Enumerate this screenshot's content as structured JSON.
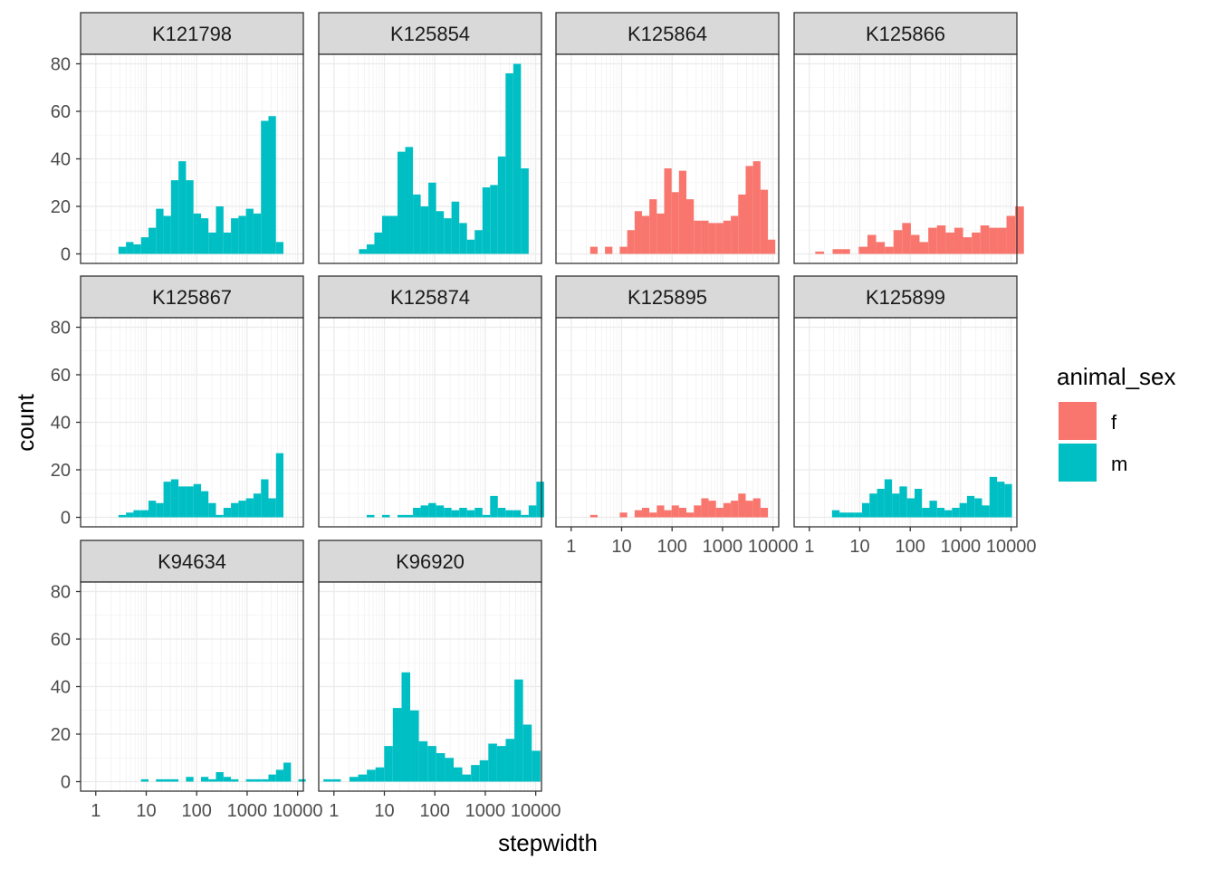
{
  "chart_data": {
    "type": "bar",
    "subtype": "faceted-histogram",
    "x_scale": "log10",
    "xlabel": "stepwidth",
    "ylabel": "count",
    "xlim": [
      0.5,
      13000
    ],
    "ylim": [
      -4,
      84
    ],
    "x_ticks": [
      1,
      10,
      100,
      1000,
      10000
    ],
    "x_tick_labels": [
      "1",
      "10",
      "100",
      "1000",
      "10000"
    ],
    "y_ticks": [
      0,
      20,
      40,
      60,
      80
    ],
    "y_tick_labels": [
      "0",
      "20",
      "40",
      "60",
      "80"
    ],
    "grid": true,
    "legend": {
      "title": "animal_sex",
      "position": "right",
      "items": [
        {
          "label": "f",
          "color": "#F8766D"
        },
        {
          "label": "m",
          "color": "#00BFC4"
        }
      ]
    },
    "facets": [
      {
        "name": "K121798",
        "sex": "m",
        "bars": [
          [
            2.82,
            3.97,
            3
          ],
          [
            3.97,
            5.59,
            5
          ],
          [
            5.59,
            7.87,
            4
          ],
          [
            7.87,
            11.1,
            7
          ],
          [
            11.1,
            15.6,
            11
          ],
          [
            15.6,
            22,
            19
          ],
          [
            22,
            31,
            16
          ],
          [
            31,
            43.6,
            31
          ],
          [
            43.6,
            61.4,
            39
          ],
          [
            61.4,
            86.4,
            31
          ],
          [
            86.4,
            122,
            17
          ],
          [
            122,
            171,
            15
          ],
          [
            171,
            241,
            9
          ],
          [
            241,
            340,
            20
          ],
          [
            340,
            478,
            9
          ],
          [
            478,
            673,
            15
          ],
          [
            673,
            948,
            16
          ],
          [
            948,
            1335,
            19
          ],
          [
            1335,
            1880,
            17
          ],
          [
            1880,
            2647,
            56
          ],
          [
            2647,
            3728,
            58
          ],
          [
            3728,
            5250,
            5
          ]
        ]
      },
      {
        "name": "K125854",
        "sex": "m",
        "bars": [
          [
            3.14,
            4.46,
            2
          ],
          [
            4.46,
            6.34,
            4
          ],
          [
            6.34,
            9.02,
            9
          ],
          [
            9.02,
            12.8,
            16
          ],
          [
            12.8,
            18.2,
            16
          ],
          [
            18.2,
            25.9,
            43
          ],
          [
            25.9,
            36.9,
            45
          ],
          [
            36.9,
            52.4,
            25
          ],
          [
            52.4,
            74.5,
            20
          ],
          [
            74.5,
            106,
            30
          ],
          [
            106,
            151,
            18
          ],
          [
            151,
            214,
            15
          ],
          [
            214,
            305,
            22
          ],
          [
            305,
            434,
            13
          ],
          [
            434,
            617,
            6
          ],
          [
            617,
            877,
            10
          ],
          [
            877,
            1247,
            28
          ],
          [
            1247,
            1773,
            29
          ],
          [
            1773,
            2521,
            41
          ],
          [
            2521,
            3585,
            76
          ],
          [
            3585,
            5098,
            80
          ],
          [
            5098,
            7250,
            36
          ]
        ]
      },
      {
        "name": "K125864",
        "sex": "f",
        "bars": [
          [
            1.7,
            2.38,
            0
          ],
          [
            2.38,
            3.34,
            3
          ],
          [
            3.34,
            4.68,
            0
          ],
          [
            4.68,
            6.56,
            3
          ],
          [
            6.56,
            9.2,
            0
          ],
          [
            9.2,
            12.9,
            3
          ],
          [
            12.9,
            18.1,
            10
          ],
          [
            18.1,
            25.3,
            18
          ],
          [
            25.3,
            35.5,
            16
          ],
          [
            35.5,
            49.8,
            23
          ],
          [
            49.8,
            69.8,
            17
          ],
          [
            69.8,
            97.9,
            36
          ],
          [
            97.9,
            137,
            26
          ],
          [
            137,
            192,
            35
          ],
          [
            192,
            270,
            23
          ],
          [
            270,
            378,
            14
          ],
          [
            378,
            530,
            14
          ],
          [
            530,
            743,
            13
          ],
          [
            743,
            1042,
            13
          ],
          [
            1042,
            1461,
            14
          ],
          [
            1461,
            2049,
            16
          ],
          [
            2049,
            2874,
            25
          ],
          [
            2874,
            4030,
            37
          ],
          [
            4030,
            5650,
            39
          ],
          [
            5650,
            7923,
            27
          ],
          [
            7923,
            11110,
            6
          ]
        ]
      },
      {
        "name": "K125866",
        "sex": "f",
        "bars": [
          [
            0.88,
            1.31,
            0
          ],
          [
            1.31,
            1.95,
            1
          ],
          [
            1.95,
            2.9,
            0
          ],
          [
            2.9,
            4.31,
            2
          ],
          [
            4.31,
            6.41,
            2
          ],
          [
            6.41,
            9.53,
            0
          ],
          [
            9.53,
            14.2,
            3
          ],
          [
            14.2,
            21.1,
            8
          ],
          [
            21.1,
            31.4,
            5
          ],
          [
            31.4,
            46.6,
            3
          ],
          [
            46.6,
            69.3,
            10
          ],
          [
            69.3,
            103,
            13
          ],
          [
            103,
            153,
            8
          ],
          [
            153,
            228,
            5
          ],
          [
            228,
            339,
            11
          ],
          [
            339,
            504,
            12
          ],
          [
            504,
            750,
            9
          ],
          [
            750,
            1115,
            11
          ],
          [
            1115,
            1658,
            7
          ],
          [
            1658,
            2465,
            9
          ],
          [
            2465,
            3665,
            12
          ],
          [
            3665,
            5450,
            11
          ],
          [
            5450,
            8104,
            11
          ],
          [
            8104,
            12050,
            16
          ],
          [
            12050,
            17920,
            20
          ]
        ]
      },
      {
        "name": "K125867",
        "sex": "m",
        "bars": [
          [
            2.82,
            3.97,
            1
          ],
          [
            3.97,
            5.59,
            2
          ],
          [
            5.59,
            7.87,
            3
          ],
          [
            7.87,
            11.1,
            3
          ],
          [
            11.1,
            15.6,
            7
          ],
          [
            15.6,
            22,
            6
          ],
          [
            22,
            31,
            15
          ],
          [
            31,
            43.6,
            16
          ],
          [
            43.6,
            61.4,
            13
          ],
          [
            61.4,
            86.4,
            13
          ],
          [
            86.4,
            122,
            14
          ],
          [
            122,
            171,
            11
          ],
          [
            171,
            241,
            6
          ],
          [
            241,
            340,
            1
          ],
          [
            340,
            478,
            4
          ],
          [
            478,
            673,
            6
          ],
          [
            673,
            948,
            7
          ],
          [
            948,
            1335,
            8
          ],
          [
            1335,
            1880,
            10
          ],
          [
            1880,
            2647,
            16
          ],
          [
            2647,
            3728,
            8
          ],
          [
            3728,
            5250,
            27
          ]
        ]
      },
      {
        "name": "K125874",
        "sex": "m",
        "bars": [
          [
            3.14,
            4.46,
            0
          ],
          [
            4.46,
            6.34,
            1
          ],
          [
            6.34,
            9.02,
            0
          ],
          [
            9.02,
            12.8,
            1
          ],
          [
            12.8,
            18.2,
            0
          ],
          [
            18.2,
            25.9,
            1
          ],
          [
            25.9,
            36.9,
            1
          ],
          [
            36.9,
            52.4,
            4
          ],
          [
            52.4,
            74.5,
            5
          ],
          [
            74.5,
            106,
            6
          ],
          [
            106,
            151,
            5
          ],
          [
            151,
            214,
            4
          ],
          [
            214,
            305,
            3
          ],
          [
            305,
            434,
            4
          ],
          [
            434,
            617,
            3
          ],
          [
            617,
            877,
            4
          ],
          [
            877,
            1247,
            1
          ],
          [
            1247,
            1773,
            9
          ],
          [
            1773,
            2521,
            4
          ],
          [
            2521,
            3585,
            3
          ],
          [
            3585,
            5098,
            3
          ],
          [
            5098,
            7250,
            1
          ],
          [
            7250,
            10310,
            5
          ],
          [
            10310,
            14660,
            15
          ]
        ]
      },
      {
        "name": "K125895",
        "sex": "f",
        "bars": [
          [
            1.7,
            2.38,
            0
          ],
          [
            2.38,
            3.34,
            1
          ],
          [
            3.34,
            4.68,
            0
          ],
          [
            4.68,
            6.56,
            0
          ],
          [
            6.56,
            9.2,
            0
          ],
          [
            9.2,
            12.9,
            2
          ],
          [
            12.9,
            18.1,
            0
          ],
          [
            18.1,
            25.3,
            3
          ],
          [
            25.3,
            35.5,
            4
          ],
          [
            35.5,
            49.8,
            2
          ],
          [
            49.8,
            69.8,
            5
          ],
          [
            69.8,
            97.9,
            3
          ],
          [
            97.9,
            137,
            5
          ],
          [
            137,
            192,
            4
          ],
          [
            192,
            270,
            2
          ],
          [
            270,
            378,
            5
          ],
          [
            378,
            530,
            8
          ],
          [
            530,
            743,
            7
          ],
          [
            743,
            1042,
            4
          ],
          [
            1042,
            1461,
            6
          ],
          [
            1461,
            2049,
            7
          ],
          [
            2049,
            2874,
            10
          ],
          [
            2874,
            4030,
            7
          ],
          [
            4030,
            5650,
            8
          ],
          [
            5650,
            7923,
            4
          ]
        ]
      },
      {
        "name": "K125899",
        "sex": "m",
        "bars": [
          [
            2.82,
            3.97,
            3
          ],
          [
            3.97,
            5.59,
            2
          ],
          [
            5.59,
            7.87,
            2
          ],
          [
            7.87,
            11.1,
            2
          ],
          [
            11.1,
            15.6,
            6
          ],
          [
            15.6,
            22,
            10
          ],
          [
            22,
            31,
            12
          ],
          [
            31,
            43.6,
            16
          ],
          [
            43.6,
            61.4,
            10
          ],
          [
            61.4,
            86.4,
            13
          ],
          [
            86.4,
            122,
            8
          ],
          [
            122,
            171,
            12
          ],
          [
            171,
            241,
            4
          ],
          [
            241,
            340,
            7
          ],
          [
            340,
            478,
            4
          ],
          [
            478,
            673,
            3
          ],
          [
            673,
            948,
            4
          ],
          [
            948,
            1335,
            6
          ],
          [
            1335,
            1880,
            9
          ],
          [
            1880,
            2647,
            8
          ],
          [
            2647,
            3728,
            5
          ],
          [
            3728,
            5250,
            17
          ],
          [
            5250,
            7400,
            15
          ],
          [
            7400,
            10400,
            14
          ]
        ]
      },
      {
        "name": "K94634",
        "sex": "m",
        "bars": [
          [
            7.87,
            11.1,
            1
          ],
          [
            11.1,
            15.6,
            0
          ],
          [
            15.6,
            22,
            1
          ],
          [
            22,
            31,
            1
          ],
          [
            31,
            43.6,
            1
          ],
          [
            43.6,
            61.4,
            0
          ],
          [
            61.4,
            86.4,
            2
          ],
          [
            86.4,
            122,
            0
          ],
          [
            122,
            171,
            2
          ],
          [
            171,
            241,
            1
          ],
          [
            241,
            340,
            4
          ],
          [
            340,
            478,
            2
          ],
          [
            478,
            673,
            1
          ],
          [
            673,
            948,
            0
          ],
          [
            948,
            1335,
            1
          ],
          [
            1335,
            1880,
            1
          ],
          [
            1880,
            2647,
            1
          ],
          [
            2647,
            3728,
            3
          ],
          [
            3728,
            5250,
            5
          ],
          [
            5250,
            7400,
            8
          ],
          [
            7400,
            10400,
            0
          ],
          [
            10400,
            14500,
            1
          ]
        ]
      },
      {
        "name": "K96920",
        "sex": "m",
        "bars": [
          [
            0.62,
            0.92,
            1
          ],
          [
            0.92,
            1.37,
            1
          ],
          [
            1.37,
            2.03,
            0
          ],
          [
            2.03,
            3.02,
            2
          ],
          [
            3.02,
            4.49,
            3
          ],
          [
            4.49,
            6.67,
            5
          ],
          [
            6.67,
            9.91,
            6
          ],
          [
            9.91,
            14.7,
            15
          ],
          [
            14.7,
            21.9,
            31
          ],
          [
            21.9,
            32.5,
            46
          ],
          [
            32.5,
            48.3,
            30
          ],
          [
            48.3,
            71.8,
            17
          ],
          [
            71.8,
            107,
            15
          ],
          [
            107,
            159,
            12
          ],
          [
            159,
            236,
            10
          ],
          [
            236,
            350,
            6
          ],
          [
            350,
            521,
            3
          ],
          [
            521,
            774,
            7
          ],
          [
            774,
            1150,
            9
          ],
          [
            1150,
            1709,
            16
          ],
          [
            1709,
            2540,
            15
          ],
          [
            2540,
            3774,
            18
          ],
          [
            3774,
            5608,
            43
          ],
          [
            5608,
            8333,
            24
          ],
          [
            8333,
            12380,
            13
          ]
        ]
      }
    ]
  }
}
